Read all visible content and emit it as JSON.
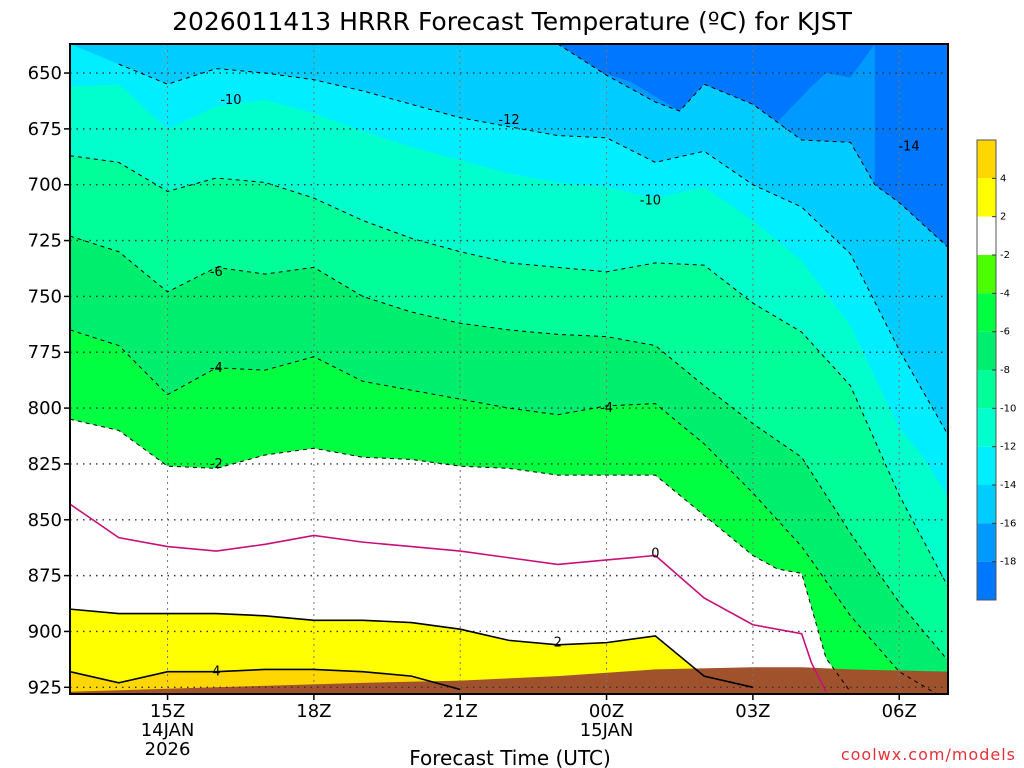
{
  "chart_data": {
    "type": "contour",
    "title": "2026011413 HRRR Forecast Temperature (ºC) for KJST",
    "xlabel": "Forecast Time (UTC)",
    "ylabel": "",
    "y_axis": {
      "ticks": [
        650,
        675,
        700,
        725,
        750,
        775,
        800,
        825,
        850,
        875,
        900,
        925
      ],
      "direction": "pressure (hPa), decreasing upward",
      "range": [
        637,
        928
      ]
    },
    "x_axis": {
      "ticks": [
        {
          "hour": 15,
          "label": "15Z",
          "date": "14JAN",
          "year": "2026"
        },
        {
          "hour": 18,
          "label": "18Z",
          "date": "",
          "year": ""
        },
        {
          "hour": 21,
          "label": "21Z",
          "date": "",
          "year": ""
        },
        {
          "hour": 24,
          "label": "00Z",
          "date": "15JAN",
          "year": ""
        },
        {
          "hour": 27,
          "label": "03Z",
          "date": "",
          "year": ""
        },
        {
          "hour": 30,
          "label": "06Z",
          "date": "",
          "year": ""
        }
      ],
      "range": [
        13,
        31
      ]
    },
    "grid": true,
    "credit": "coolwx.com/models",
    "colorbar": {
      "labels": [
        "4",
        "2",
        "-2",
        "-4",
        "-6",
        "-8",
        "-10",
        "-12",
        "-14",
        "-16",
        "-18"
      ],
      "colors": [
        "#ffd700",
        "#ffff00",
        "#ffffff",
        "#4cff00",
        "#00ff40",
        "#00ee6e",
        "#00ff99",
        "#00ffcc",
        "#00eeff",
        "#00ccff",
        "#0099ff",
        "#0077ff"
      ]
    },
    "contour_labels": [
      "-10",
      "-12",
      "-14",
      "-10",
      "-6",
      "-4",
      "-4",
      "-2",
      "0",
      "2",
      "4"
    ],
    "bands": [
      {
        "name": "-18",
        "color": "#0077ff",
        "top": [
          [
            13,
            637
          ],
          [
            29.9,
            637
          ],
          [
            29.9,
            637
          ]
        ],
        "bottom": [
          [
            29.9,
            637
          ],
          [
            30.0,
            650
          ],
          [
            30.5,
            670
          ],
          [
            31.0,
            690
          ]
        ]
      },
      {
        "name": "-16",
        "color": "#0099ff",
        "bottom": [
          [
            21.5,
            637
          ],
          [
            23.0,
            643
          ],
          [
            24.5,
            654
          ],
          [
            25.5,
            667
          ],
          [
            26.5,
            675
          ],
          [
            27.5,
            672
          ],
          [
            28.2,
            656
          ],
          [
            28.5,
            650
          ],
          [
            29.0,
            652
          ],
          [
            29.5,
            637
          ]
        ]
      },
      {
        "name": "-14",
        "color": "#00ccff",
        "bottom": [
          [
            15.0,
            651
          ],
          [
            16.0,
            644
          ],
          [
            17.0,
            645
          ],
          [
            18.0,
            649
          ],
          [
            19.0,
            654
          ],
          [
            20.0,
            660
          ],
          [
            21.0,
            663
          ],
          [
            22.0,
            667
          ],
          [
            23.0,
            671
          ],
          [
            24.0,
            672
          ],
          [
            25.0,
            681
          ],
          [
            26.0,
            677
          ],
          [
            27.0,
            690
          ],
          [
            28.0,
            697
          ],
          [
            29.0,
            720
          ],
          [
            30.0,
            765
          ],
          [
            30.5,
            780
          ],
          [
            31.0,
            800
          ]
        ]
      },
      {
        "name": "-12",
        "color": "#00eeff",
        "bottom": [
          [
            13.0,
            656
          ],
          [
            14.0,
            655
          ],
          [
            15.0,
            675
          ],
          [
            16.0,
            665
          ],
          [
            17.0,
            662
          ],
          [
            18.0,
            668
          ],
          [
            19.0,
            676
          ],
          [
            20.0,
            683
          ],
          [
            21.0,
            689
          ],
          [
            22.0,
            695
          ],
          [
            23.0,
            699
          ],
          [
            24.0,
            701
          ],
          [
            25.0,
            706
          ],
          [
            26.0,
            701
          ],
          [
            27.0,
            716
          ],
          [
            28.0,
            734
          ],
          [
            29.0,
            763
          ],
          [
            30.0,
            809
          ],
          [
            30.5,
            822
          ],
          [
            31.0,
            840
          ]
        ]
      }
    ],
    "isotherms": [
      {
        "value": -14,
        "style": "dashed",
        "points": [
          [
            23.0,
            637
          ],
          [
            24.0,
            651
          ],
          [
            25.0,
            663
          ],
          [
            25.5,
            667
          ],
          [
            26.0,
            655
          ],
          [
            27.0,
            664
          ],
          [
            28.0,
            680
          ],
          [
            29.0,
            681
          ],
          [
            29.5,
            700
          ],
          [
            30.0,
            708
          ],
          [
            31.0,
            728
          ]
        ]
      },
      {
        "value": -12,
        "style": "dashed",
        "points": [
          [
            14.0,
            646
          ],
          [
            15.0,
            655
          ],
          [
            16.0,
            648
          ],
          [
            17.0,
            650
          ],
          [
            18.0,
            653
          ],
          [
            19.0,
            658
          ],
          [
            20.0,
            664
          ],
          [
            21.0,
            670
          ],
          [
            22.0,
            674
          ],
          [
            23.0,
            678
          ],
          [
            24.0,
            679
          ],
          [
            25.0,
            690
          ],
          [
            26.0,
            685
          ],
          [
            27.0,
            700
          ],
          [
            28.0,
            710
          ],
          [
            29.0,
            731
          ],
          [
            30.0,
            774
          ],
          [
            31.0,
            812
          ]
        ]
      },
      {
        "value": -10,
        "style": "dashed",
        "points": [
          [
            13.0,
            687
          ],
          [
            14.0,
            690
          ],
          [
            15.0,
            703
          ],
          [
            16.0,
            697
          ],
          [
            17.0,
            699
          ],
          [
            18.0,
            706
          ],
          [
            19.0,
            716
          ],
          [
            20.0,
            724
          ],
          [
            21.0,
            730
          ],
          [
            22.0,
            735
          ],
          [
            23.0,
            737
          ],
          [
            24.0,
            739
          ],
          [
            25.0,
            735
          ],
          [
            26.0,
            736
          ],
          [
            27.0,
            753
          ],
          [
            28.0,
            766
          ],
          [
            29.0,
            790
          ],
          [
            30.0,
            839
          ],
          [
            31.0,
            880
          ]
        ]
      },
      {
        "value": -8,
        "style": "dashed",
        "points": [
          [
            13.0,
            723
          ],
          [
            14.0,
            730
          ],
          [
            15.0,
            748
          ],
          [
            16.0,
            737
          ],
          [
            17.0,
            740
          ],
          [
            18.0,
            737
          ],
          [
            19.0,
            750
          ],
          [
            20.0,
            757
          ],
          [
            21.0,
            762
          ],
          [
            22.0,
            765
          ],
          [
            23.0,
            767
          ],
          [
            24.0,
            768
          ],
          [
            25.0,
            772
          ],
          [
            26.0,
            790
          ],
          [
            27.0,
            807
          ],
          [
            28.0,
            822
          ],
          [
            29.0,
            856
          ],
          [
            30.0,
            887
          ],
          [
            31.0,
            913
          ]
        ]
      },
      {
        "value": -6,
        "style": "dashed",
        "points": [
          [
            13.0,
            765
          ],
          [
            14.0,
            772
          ],
          [
            15.0,
            794
          ],
          [
            16.0,
            782
          ],
          [
            17.0,
            783
          ],
          [
            18.0,
            777
          ],
          [
            19.0,
            788
          ],
          [
            20.0,
            792
          ],
          [
            21.0,
            796
          ],
          [
            22.0,
            800
          ],
          [
            23.0,
            803
          ],
          [
            24.0,
            799
          ],
          [
            25.0,
            798
          ],
          [
            26.0,
            816
          ],
          [
            27.0,
            838
          ],
          [
            28.0,
            862
          ],
          [
            29.0,
            893
          ],
          [
            30.0,
            918
          ],
          [
            31.0,
            931
          ]
        ]
      },
      {
        "value": -4,
        "style": "dashed",
        "points": [
          [
            13.0,
            805
          ],
          [
            14.0,
            810
          ],
          [
            15.0,
            826
          ],
          [
            16.0,
            827
          ],
          [
            17.0,
            821
          ],
          [
            18.0,
            818
          ],
          [
            19.0,
            822
          ],
          [
            20.0,
            823
          ],
          [
            21.0,
            826
          ],
          [
            22.0,
            827
          ],
          [
            23.0,
            830
          ],
          [
            24.0,
            830
          ],
          [
            25.0,
            830
          ],
          [
            26.0,
            848
          ],
          [
            27.0,
            866
          ],
          [
            27.5,
            872
          ],
          [
            28.0,
            874
          ],
          [
            28.5,
            912
          ],
          [
            29.0,
            927
          ]
        ]
      }
    ],
    "solid_lines": [
      {
        "value": 0,
        "color": "#c8107a",
        "points": [
          [
            13.0,
            843
          ],
          [
            14.0,
            858
          ],
          [
            15.0,
            862
          ],
          [
            16.0,
            864
          ],
          [
            17.0,
            861
          ],
          [
            18.0,
            857
          ],
          [
            19.0,
            860
          ],
          [
            20.0,
            862
          ],
          [
            21.0,
            864
          ],
          [
            22.0,
            867
          ],
          [
            23.0,
            870
          ],
          [
            24.0,
            868
          ],
          [
            25.0,
            866
          ],
          [
            26.0,
            885
          ],
          [
            27.0,
            897
          ],
          [
            28.0,
            901
          ],
          [
            28.2,
            914
          ],
          [
            28.5,
            927
          ]
        ]
      },
      {
        "value": 2,
        "color": "#000000",
        "points": [
          [
            13.0,
            890
          ],
          [
            14.0,
            892
          ],
          [
            15.0,
            892
          ],
          [
            16.0,
            892
          ],
          [
            17.0,
            893
          ],
          [
            18.0,
            895
          ],
          [
            19.0,
            895
          ],
          [
            20.0,
            896
          ],
          [
            21.0,
            899
          ],
          [
            22.0,
            904
          ],
          [
            23.0,
            906
          ],
          [
            24.0,
            905
          ],
          [
            25.0,
            902
          ],
          [
            26.0,
            920
          ],
          [
            27.0,
            925
          ]
        ]
      },
      {
        "value": 4,
        "color": "#000000",
        "points": [
          [
            13.0,
            918
          ],
          [
            14.0,
            923
          ],
          [
            15.0,
            918
          ],
          [
            16.0,
            918
          ],
          [
            17.0,
            917
          ],
          [
            18.0,
            917
          ],
          [
            19.0,
            918
          ],
          [
            20.0,
            920
          ],
          [
            21.0,
            926
          ]
        ]
      }
    ],
    "ground": {
      "color": "#a0522d",
      "surface": [
        [
          13.0,
          927
        ],
        [
          16.0,
          925
        ],
        [
          19.0,
          923
        ],
        [
          21.0,
          922
        ],
        [
          23.0,
          920
        ],
        [
          25.0,
          917
        ],
        [
          27.0,
          916
        ],
        [
          28.0,
          916
        ],
        [
          29.0,
          917
        ],
        [
          31.0,
          918
        ]
      ]
    }
  }
}
